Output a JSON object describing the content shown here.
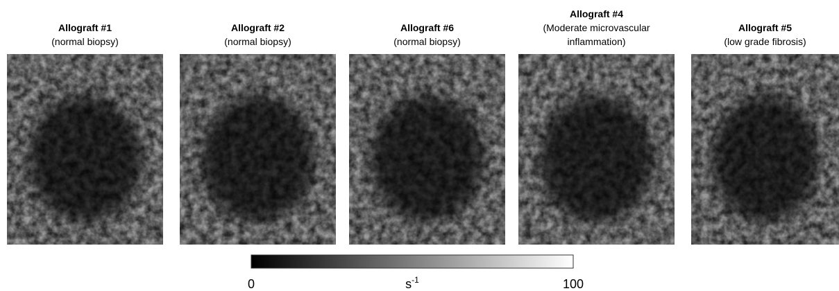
{
  "panels": [
    {
      "title": "Allograft #1",
      "subtitle": [
        "(normal biopsy)"
      ]
    },
    {
      "title": "Allograft #2",
      "subtitle": [
        "(normal biopsy)"
      ]
    },
    {
      "title": "Allograft #6",
      "subtitle": [
        "(normal biopsy)"
      ]
    },
    {
      "title": "Allograft #4",
      "subtitle": [
        "(Moderate microvascular",
        "inflammation)"
      ]
    },
    {
      "title": "Allograft #5",
      "subtitle": [
        "(low grade fibrosis)"
      ]
    }
  ],
  "colorbar": {
    "min": 0,
    "max": 100,
    "ticks": [
      0,
      100
    ],
    "unit": "s",
    "unit_exponent": "-1"
  }
}
